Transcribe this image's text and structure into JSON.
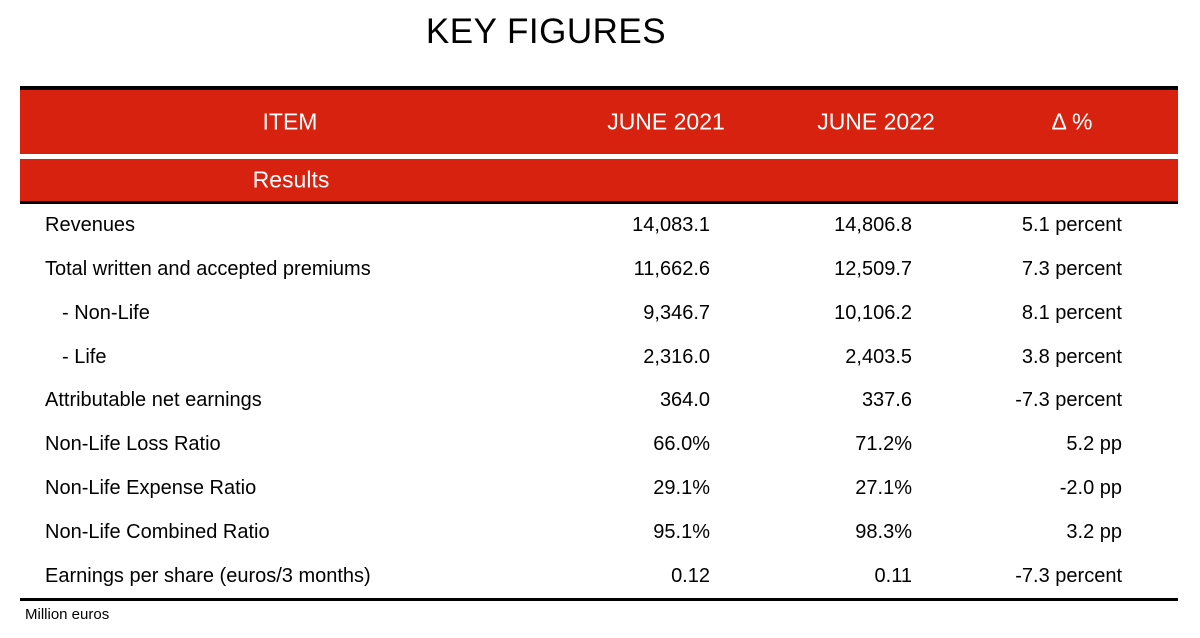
{
  "title": "KEY FIGURES",
  "colors": {
    "accent_red": "#D6220F",
    "header_text": "#FFFFFF",
    "body_text": "#000000",
    "rule_black": "#000000"
  },
  "table": {
    "column_headers": {
      "item": "ITEM",
      "june2021": "JUNE 2021",
      "june2022": "JUNE 2022",
      "delta": "Δ %"
    },
    "section_header": "Results",
    "rows": [
      {
        "label": "Revenues",
        "june2021": "14,083.1",
        "june2022": "14,806.8",
        "delta": "5.1 percent"
      },
      {
        "label": "Total written and accepted premiums",
        "june2021": "11,662.6",
        "june2022": "12,509.7",
        "delta": "7.3 percent"
      },
      {
        "label": "- Non-Life",
        "june2021": "9,346.7",
        "june2022": "10,106.2",
        "delta": "8.1 percent"
      },
      {
        "label": "- Life",
        "june2021": "2,316.0",
        "june2022": "2,403.5",
        "delta": "3.8 percent"
      },
      {
        "label": "Attributable net earnings",
        "june2021": "364.0",
        "june2022": "337.6",
        "delta": "-7.3 percent"
      },
      {
        "label": "Non-Life Loss Ratio",
        "june2021": "66.0%",
        "june2022": "71.2%",
        "delta": "5.2 pp"
      },
      {
        "label": "Non-Life Expense Ratio",
        "june2021": "29.1%",
        "june2022": "27.1%",
        "delta": "-2.0 pp"
      },
      {
        "label": "Non-Life Combined Ratio",
        "june2021": "95.1%",
        "june2022": "98.3%",
        "delta": "3.2 pp"
      },
      {
        "label": "Earnings per share (euros/3 months)",
        "june2021": "0.12",
        "june2022": "0.11",
        "delta": "-7.3 percent"
      }
    ],
    "footnote": "Million euros"
  }
}
